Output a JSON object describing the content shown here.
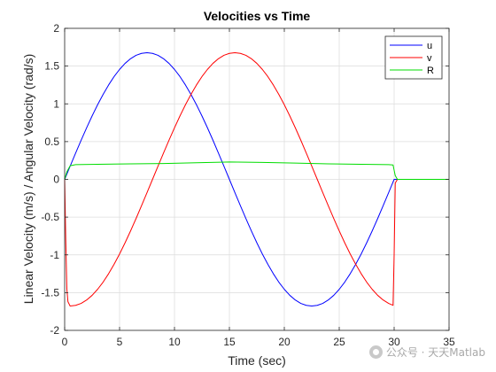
{
  "chart_data": {
    "type": "line",
    "title": "Velocities vs Time",
    "xlabel": "Time (sec)",
    "ylabel": "Linear Velocity (m/s) / Angular Velocity (rad/s)",
    "xlim": [
      0,
      35
    ],
    "ylim": [
      -2,
      2
    ],
    "xticks": [
      0,
      5,
      10,
      15,
      20,
      25,
      30,
      35
    ],
    "yticks": [
      -2,
      -1.5,
      -1,
      -0.5,
      0,
      0.5,
      1,
      1.5,
      2
    ],
    "xtick_labels": [
      "0",
      "5",
      "10",
      "15",
      "20",
      "25",
      "30",
      "35"
    ],
    "ytick_labels": [
      "-2",
      "-1.5",
      "-1",
      "-0.5",
      "0",
      "0.5",
      "1",
      "1.5",
      "2"
    ],
    "grid": true,
    "legend_position": "top-right",
    "series": [
      {
        "name": "u",
        "color": "#0000ff",
        "x": [
          0,
          0.5,
          1,
          1.5,
          2,
          2.5,
          3,
          3.5,
          4,
          4.5,
          5,
          5.5,
          6,
          6.5,
          7,
          7.5,
          8,
          8.5,
          9,
          9.5,
          10,
          10.5,
          11,
          11.5,
          12,
          12.5,
          13,
          13.5,
          14,
          14.5,
          15,
          15.5,
          16,
          16.5,
          17,
          17.5,
          18,
          18.5,
          19,
          19.5,
          20,
          20.5,
          21,
          21.5,
          22,
          22.5,
          23,
          23.5,
          24,
          24.5,
          25,
          25.5,
          26,
          26.5,
          27,
          27.5,
          28,
          28.5,
          29,
          29.5,
          30,
          30.3,
          35
        ],
        "y": [
          0,
          0.175,
          0.348,
          0.519,
          0.683,
          0.84,
          0.988,
          1.125,
          1.25,
          1.361,
          1.456,
          1.536,
          1.598,
          1.643,
          1.669,
          1.678,
          1.669,
          1.643,
          1.598,
          1.536,
          1.456,
          1.361,
          1.25,
          1.125,
          0.988,
          0.84,
          0.683,
          0.519,
          0.348,
          0.175,
          0,
          -0.175,
          -0.348,
          -0.519,
          -0.683,
          -0.84,
          -0.988,
          -1.125,
          -1.25,
          -1.361,
          -1.456,
          -1.536,
          -1.598,
          -1.643,
          -1.669,
          -1.678,
          -1.669,
          -1.643,
          -1.598,
          -1.536,
          -1.456,
          -1.361,
          -1.25,
          -1.125,
          -0.988,
          -0.84,
          -0.683,
          -0.519,
          -0.348,
          -0.175,
          0,
          0,
          0
        ]
      },
      {
        "name": "v",
        "color": "#ff0000",
        "x": [
          0,
          0.1,
          0.2,
          0.3,
          0.5,
          1,
          1.5,
          2,
          2.5,
          3,
          3.5,
          4,
          4.5,
          5,
          5.5,
          6,
          6.5,
          7,
          7.5,
          8,
          8.5,
          9,
          9.5,
          10,
          10.5,
          11,
          11.5,
          12,
          12.5,
          13,
          13.5,
          14,
          14.5,
          15,
          15.5,
          16,
          16.5,
          17,
          17.5,
          18,
          18.5,
          19,
          19.5,
          20,
          20.5,
          21,
          21.5,
          22,
          22.5,
          23,
          23.5,
          24,
          24.5,
          25,
          25.5,
          26,
          26.5,
          27,
          27.5,
          28,
          28.5,
          29,
          29.5,
          29.9,
          30,
          30.1,
          30.3,
          35
        ],
        "y": [
          0,
          -0.8,
          -1.45,
          -1.62,
          -1.678,
          -1.669,
          -1.643,
          -1.598,
          -1.536,
          -1.456,
          -1.361,
          -1.25,
          -1.125,
          -0.988,
          -0.84,
          -0.683,
          -0.519,
          -0.348,
          -0.175,
          0,
          0.175,
          0.348,
          0.519,
          0.683,
          0.84,
          0.988,
          1.125,
          1.25,
          1.361,
          1.456,
          1.536,
          1.598,
          1.643,
          1.669,
          1.678,
          1.669,
          1.643,
          1.598,
          1.536,
          1.456,
          1.361,
          1.25,
          1.125,
          0.988,
          0.84,
          0.683,
          0.519,
          0.348,
          0.175,
          0,
          -0.175,
          -0.348,
          -0.519,
          -0.683,
          -0.84,
          -0.988,
          -1.125,
          -1.25,
          -1.361,
          -1.456,
          -1.536,
          -1.598,
          -1.643,
          -1.668,
          -1.0,
          -0.05,
          0,
          0
        ]
      },
      {
        "name": "R",
        "color": "#00dd00",
        "x": [
          0,
          0.2,
          0.5,
          1,
          3,
          6,
          9,
          12,
          15,
          18,
          21,
          24,
          27,
          29.5,
          29.9,
          30.1,
          30.3,
          35
        ],
        "y": [
          0,
          0.1,
          0.18,
          0.195,
          0.2,
          0.205,
          0.21,
          0.22,
          0.23,
          0.225,
          0.215,
          0.205,
          0.2,
          0.195,
          0.19,
          0.05,
          0,
          0
        ]
      }
    ]
  },
  "watermark": {
    "text": "公众号 · 天天Matlab",
    "icon": "wechat-icon"
  }
}
